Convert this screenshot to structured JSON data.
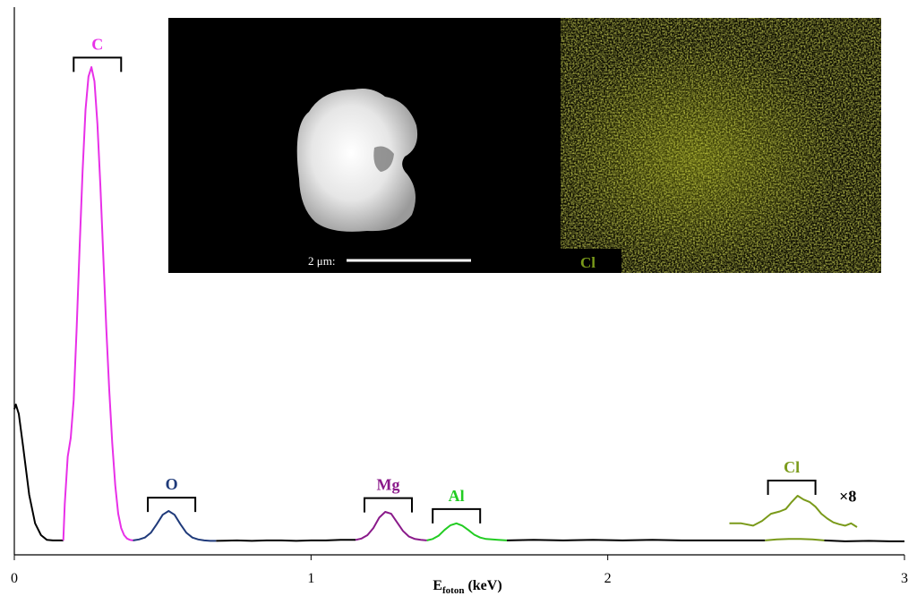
{
  "chart_data": {
    "type": "line",
    "xlabel_main": "E",
    "xlabel_sub": "foton",
    "xlabel_unit": " (keV)",
    "xlim": [
      0,
      3
    ],
    "ylim": [
      0,
      1
    ],
    "xticks": [
      0,
      1,
      2,
      3
    ],
    "xtick_labels": [
      "0",
      "1",
      "2",
      "3"
    ],
    "yaxis_labels": false,
    "grid": false,
    "series": [
      {
        "color": "#000000",
        "x": [
          0.0,
          0.005,
          0.015,
          0.03,
          0.05,
          0.07,
          0.09,
          0.11,
          0.13,
          0.15,
          0.16,
          0.165
        ],
        "y": [
          0.28,
          0.29,
          0.27,
          0.2,
          0.1,
          0.04,
          0.015,
          0.005,
          0.004,
          0.004,
          0.004,
          0.004
        ]
      },
      {
        "name": "C",
        "color": "#e830e8",
        "x": [
          0.165,
          0.17,
          0.18,
          0.19,
          0.2,
          0.21,
          0.22,
          0.23,
          0.24,
          0.25,
          0.26,
          0.27,
          0.28,
          0.29,
          0.3,
          0.31,
          0.32,
          0.33,
          0.34,
          0.35,
          0.36,
          0.37,
          0.38,
          0.39,
          0.4
        ],
        "y": [
          0.004,
          0.08,
          0.18,
          0.22,
          0.3,
          0.45,
          0.62,
          0.78,
          0.91,
          0.98,
          1.0,
          0.97,
          0.88,
          0.75,
          0.6,
          0.45,
          0.32,
          0.21,
          0.12,
          0.06,
          0.03,
          0.015,
          0.008,
          0.005,
          0.004
        ]
      },
      {
        "name": "O",
        "color": "#1f3a7a",
        "x": [
          0.4,
          0.42,
          0.44,
          0.46,
          0.48,
          0.5,
          0.52,
          0.54,
          0.56,
          0.58,
          0.6,
          0.62,
          0.64,
          0.66,
          0.68
        ],
        "y": [
          0.004,
          0.006,
          0.01,
          0.02,
          0.038,
          0.058,
          0.066,
          0.058,
          0.038,
          0.02,
          0.01,
          0.006,
          0.004,
          0.003,
          0.003
        ]
      },
      {
        "color": "#000000",
        "x": [
          0.68,
          0.75,
          0.8,
          0.85,
          0.9,
          0.95,
          1.0,
          1.05,
          1.1,
          1.15
        ],
        "y": [
          0.003,
          0.004,
          0.003,
          0.004,
          0.004,
          0.003,
          0.004,
          0.004,
          0.005,
          0.005
        ]
      },
      {
        "name": "Mg",
        "color": "#8a1a8a",
        "x": [
          1.15,
          1.17,
          1.19,
          1.21,
          1.23,
          1.25,
          1.27,
          1.29,
          1.31,
          1.33,
          1.35,
          1.37,
          1.39
        ],
        "y": [
          0.005,
          0.008,
          0.015,
          0.03,
          0.052,
          0.064,
          0.06,
          0.042,
          0.024,
          0.012,
          0.007,
          0.005,
          0.004
        ]
      },
      {
        "name": "Al",
        "color": "#22cc22",
        "x": [
          1.39,
          1.41,
          1.43,
          1.45,
          1.47,
          1.49,
          1.51,
          1.53,
          1.55,
          1.57,
          1.59,
          1.61,
          1.63,
          1.66
        ],
        "y": [
          0.004,
          0.007,
          0.014,
          0.026,
          0.036,
          0.04,
          0.035,
          0.026,
          0.016,
          0.01,
          0.007,
          0.006,
          0.005,
          0.004
        ]
      },
      {
        "color": "#000000",
        "x": [
          1.66,
          1.75,
          1.85,
          1.95,
          2.05,
          2.15,
          2.25,
          2.35,
          2.45,
          2.53
        ],
        "y": [
          0.004,
          0.005,
          0.004,
          0.005,
          0.004,
          0.005,
          0.004,
          0.004,
          0.004,
          0.004
        ]
      },
      {
        "name": "Cl",
        "color": "#7a9a1a",
        "x": [
          2.53,
          2.57,
          2.61,
          2.65,
          2.69,
          2.73
        ],
        "y": [
          0.004,
          0.006,
          0.007,
          0.007,
          0.006,
          0.004
        ]
      },
      {
        "color": "#000000",
        "x": [
          2.73,
          2.8,
          2.88,
          2.95,
          3.0
        ],
        "y": [
          0.004,
          0.002,
          0.003,
          0.002,
          0.002
        ]
      },
      {
        "name": "Cl ×8",
        "color": "#7a9a1a",
        "x": [
          2.41,
          2.45,
          2.49,
          2.52,
          2.55,
          2.58,
          2.6,
          2.62,
          2.64,
          2.66,
          2.68,
          2.7,
          2.72,
          2.74,
          2.76,
          2.78,
          2.8,
          2.82,
          2.84
        ],
        "y": [
          0.04,
          0.04,
          0.035,
          0.045,
          0.06,
          0.065,
          0.07,
          0.085,
          0.098,
          0.09,
          0.085,
          0.075,
          0.06,
          0.05,
          0.042,
          0.038,
          0.035,
          0.04,
          0.032
        ]
      }
    ],
    "peaks": [
      {
        "label": "C",
        "color": "#e830e8",
        "x_range": [
          0.2,
          0.36
        ],
        "y": 1.02
      },
      {
        "label": "O",
        "color": "#1f3a7a",
        "x_range": [
          0.45,
          0.61
        ],
        "y": 0.094
      },
      {
        "label": "Mg",
        "color": "#8a1a8a",
        "x_range": [
          1.18,
          1.34
        ],
        "y": 0.093
      },
      {
        "label": "Al",
        "color": "#22cc22",
        "x_range": [
          1.41,
          1.57
        ],
        "y": 0.07
      },
      {
        "label": "Cl",
        "color": "#7a9a1a",
        "x_range": [
          2.54,
          2.7
        ],
        "y": 0.13
      }
    ],
    "multiplier_label": "×8",
    "multiplier_position": [
      2.78,
      0.086
    ]
  },
  "inset": {
    "scale_bar_label": "2 μm:",
    "scale_bar_value_um": 2,
    "map_element_label": "Cl",
    "map_color": "#c8d41e",
    "sem_bg": "#000000"
  }
}
